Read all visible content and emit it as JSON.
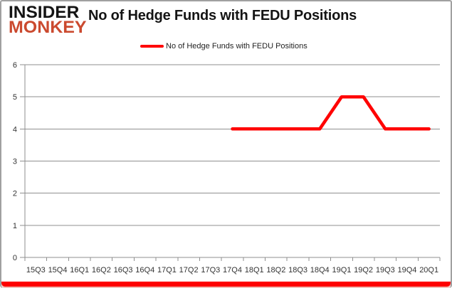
{
  "brand": {
    "line1": "INSIDER",
    "line2": "MONKEY"
  },
  "header": {
    "title": "No of Hedge Funds with FEDU Positions"
  },
  "legend": {
    "label": "No of Hedge Funds with FEDU Positions"
  },
  "colors": {
    "series": "#ff0000",
    "grid": "#8f8f8f",
    "axis_text": "#333333",
    "title_text": "#141414",
    "brand_black": "#141414",
    "brand_red": "#cb4a2f",
    "bottom_bar": "#fe0100",
    "border": "#a0a0a0"
  },
  "chart_data": {
    "type": "line",
    "title": "No of Hedge Funds with FEDU Positions",
    "categories": [
      "15Q3",
      "15Q4",
      "16Q1",
      "16Q2",
      "16Q3",
      "16Q4",
      "17Q1",
      "17Q2",
      "17Q3",
      "17Q4",
      "18Q1",
      "18Q2",
      "18Q3",
      "18Q4",
      "19Q1",
      "19Q2",
      "19Q3",
      "19Q4",
      "20Q1"
    ],
    "series": [
      {
        "name": "No of Hedge Funds with FEDU Positions",
        "color": "#ff0000",
        "values": [
          null,
          null,
          null,
          null,
          null,
          null,
          null,
          null,
          null,
          4,
          4,
          4,
          4,
          4,
          5,
          5,
          4,
          4,
          4
        ]
      }
    ],
    "xlabel": "",
    "ylabel": "",
    "ylim": [
      0,
      6
    ],
    "ytick_step": 1,
    "grid": true,
    "legend_position": "top"
  }
}
